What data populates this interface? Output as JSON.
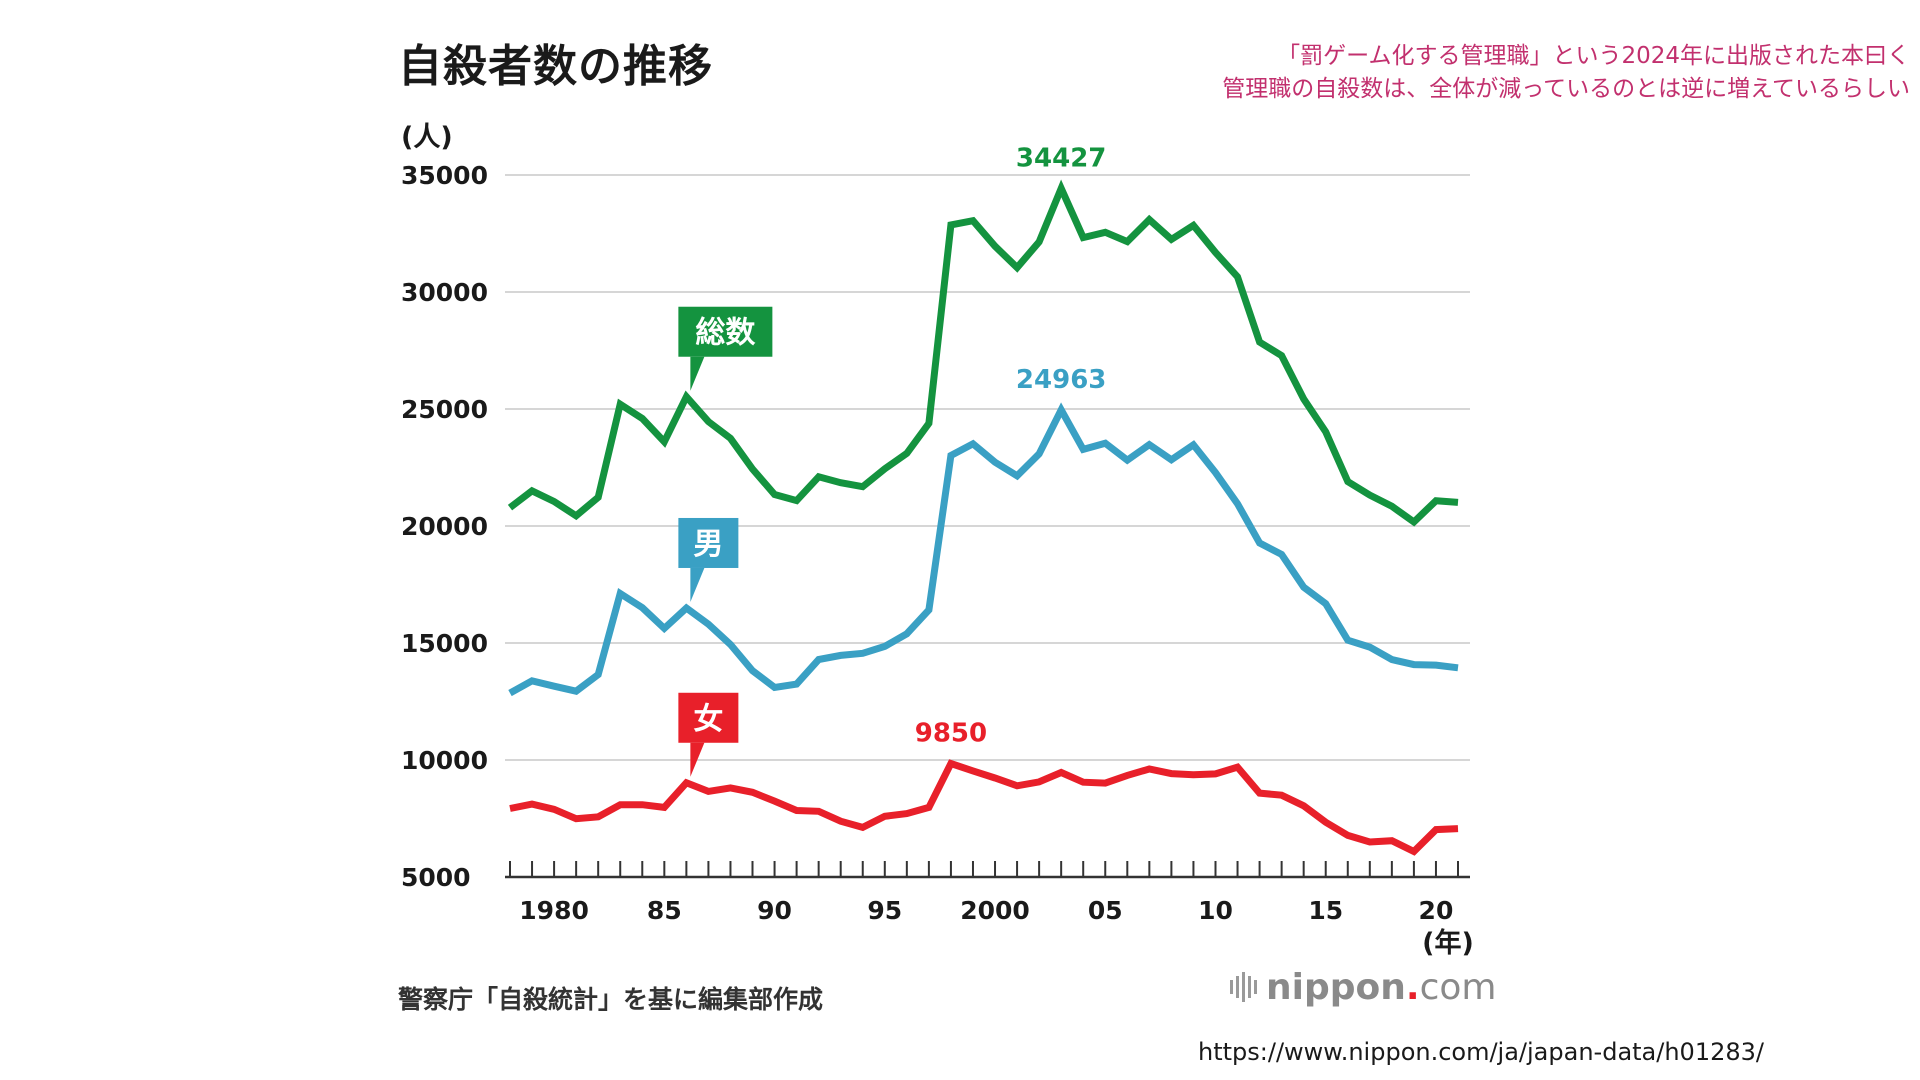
{
  "header": {
    "title": "自殺者数の推移"
  },
  "note": {
    "line1": "「罰ゲーム化する管理職」という2024年に出版された本曰く",
    "line2": "管理職の自殺数は、全体が減っているのとは逆に増えているらしい"
  },
  "footer": {
    "source": "警察庁「自殺統計」を基に編集部作成",
    "logo_text_main": "nippon",
    "logo_dot": ".",
    "logo_text_tail": "com",
    "url": "https://www.nippon.com/ja/japan-data/h01283/"
  },
  "chart_data": {
    "type": "line",
    "title": "自殺者数の推移",
    "ylabel": "(人)",
    "xlabel": "(年)",
    "ylim": [
      5000,
      35000
    ],
    "yticks": [
      5000,
      10000,
      15000,
      20000,
      25000,
      30000,
      35000
    ],
    "xlim": [
      1978,
      2021
    ],
    "xtick_values": [
      1980,
      1985,
      1990,
      1995,
      2000,
      2005,
      2010,
      2015,
      2020
    ],
    "xtick_labels": [
      "1980",
      "85",
      "90",
      "95",
      "2000",
      "05",
      "10",
      "15",
      "20"
    ],
    "grid": true,
    "x": [
      1978,
      1979,
      1980,
      1981,
      1982,
      1983,
      1984,
      1985,
      1986,
      1987,
      1988,
      1989,
      1990,
      1991,
      1992,
      1993,
      1994,
      1995,
      1996,
      1997,
      1998,
      1999,
      2000,
      2001,
      2002,
      2003,
      2004,
      2005,
      2006,
      2007,
      2008,
      2009,
      2010,
      2011,
      2012,
      2013,
      2014,
      2015,
      2016,
      2017,
      2018,
      2019,
      2020,
      2021
    ],
    "series": [
      {
        "name": "総数",
        "color": "#14933f",
        "values": [
          20788,
          21503,
          21048,
          20434,
          21228,
          25202,
          24596,
          23599,
          25524,
          24460,
          23742,
          22436,
          21346,
          21084,
          22104,
          21851,
          21679,
          22445,
          23104,
          24391,
          32863,
          33048,
          31957,
          31042,
          32143,
          34427,
          32325,
          32552,
          32155,
          33093,
          32249,
          32845,
          31690,
          30651,
          27858,
          27283,
          25427,
          24025,
          21897,
          21321,
          20840,
          20169,
          21081,
          21007
        ]
      },
      {
        "name": "男",
        "color": "#3aa0c4",
        "values": [
          12859,
          13386,
          13155,
          12942,
          13654,
          17116,
          16508,
          15624,
          16497,
          15802,
          14934,
          13818,
          13102,
          13242,
          14296,
          14468,
          14560,
          14853,
          15393,
          16416,
          23013,
          23512,
          22727,
          22144,
          23080,
          24963,
          23272,
          23540,
          22813,
          23478,
          22831,
          23472,
          22283,
          20955,
          19273,
          18787,
          17386,
          16681,
          15121,
          14826,
          14290,
          14078,
          14055,
          13939
        ]
      },
      {
        "name": "女",
        "color": "#e8202a",
        "values": [
          7929,
          8117,
          7893,
          7492,
          7574,
          8086,
          8088,
          7975,
          9027,
          8658,
          8808,
          8618,
          8244,
          7842,
          7808,
          7383,
          7119,
          7592,
          7711,
          7975,
          9850,
          9536,
          9230,
          8898,
          9063,
          9464,
          9053,
          9012,
          9342,
          9615,
          9418,
          9373,
          9407,
          9696,
          8585,
          8496,
          8041,
          7344,
          6776,
          6495,
          6550,
          6091,
          7026,
          7068
        ]
      }
    ],
    "annotations": [
      {
        "series": "総数",
        "x": 2003,
        "label": "34427"
      },
      {
        "series": "男",
        "x": 2003,
        "label": "24963"
      },
      {
        "series": "女",
        "x": 1998,
        "label": "9850"
      }
    ],
    "series_labels": [
      {
        "text": "総数",
        "x": 1986,
        "color": "#14933f"
      },
      {
        "text": "男",
        "x": 1986,
        "color": "#3aa0c4"
      },
      {
        "text": "女",
        "x": 1986,
        "color": "#e8202a"
      }
    ]
  }
}
